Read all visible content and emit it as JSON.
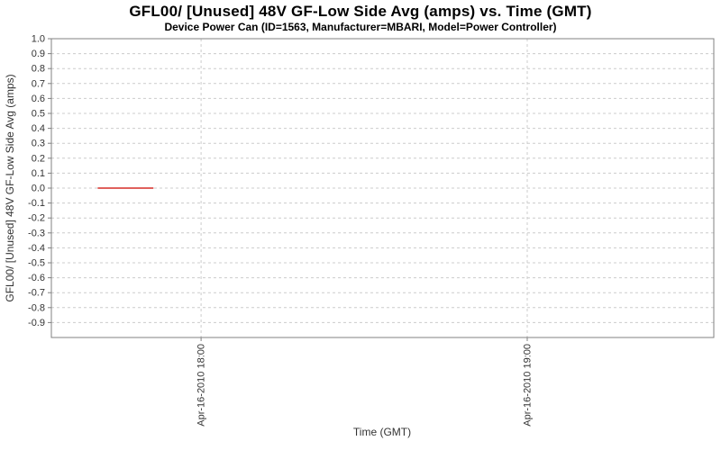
{
  "chart": {
    "colors": {
      "series": "#dc4a45",
      "grid": "#cccccc",
      "axis": "#808080",
      "tick_label": "#333333",
      "title": "#000000"
    }
  },
  "chart_data": {
    "type": "line",
    "title": "GFL00/ [Unused] 48V GF-Low Side Avg (amps) vs. Time (GMT)",
    "subtitle": "Device Power Can (ID=1563, Manufacturer=MBARI, Model=Power Controller)",
    "xlabel": "Time (GMT)",
    "ylabel": "GFL00/ [Unused] 48V GF-Low Side Avg (amps)",
    "date": "Apr-16-2010",
    "ylim": [
      -1.0,
      1.0
    ],
    "y_tick_step": 0.1,
    "y_ticks": [
      1.0,
      0.9,
      0.8,
      0.7,
      0.6,
      0.5,
      0.4,
      0.3,
      0.2,
      0.1,
      0.0,
      -0.1,
      -0.2,
      -0.3,
      -0.4,
      -0.5,
      -0.6,
      -0.7,
      -0.8,
      -0.9
    ],
    "x_range_hours": [
      17.541,
      19.572
    ],
    "x_ticks": [
      {
        "hour": 18.0,
        "label": "Apr-16-2010 18:00"
      },
      {
        "hour": 19.0,
        "label": "Apr-16-2010 19:00"
      }
    ],
    "grid": true,
    "legend": "none",
    "series": [
      {
        "name": "GFL00/ [Unused] 48V GF-Low Side Avg",
        "color": "#dc4a45",
        "points": [
          {
            "time": "Apr-16-2010 17:41",
            "hour": 17.683,
            "value": 0.0
          },
          {
            "time": "Apr-16-2010 17:51",
            "hour": 17.854,
            "value": 0.0
          }
        ]
      }
    ]
  }
}
